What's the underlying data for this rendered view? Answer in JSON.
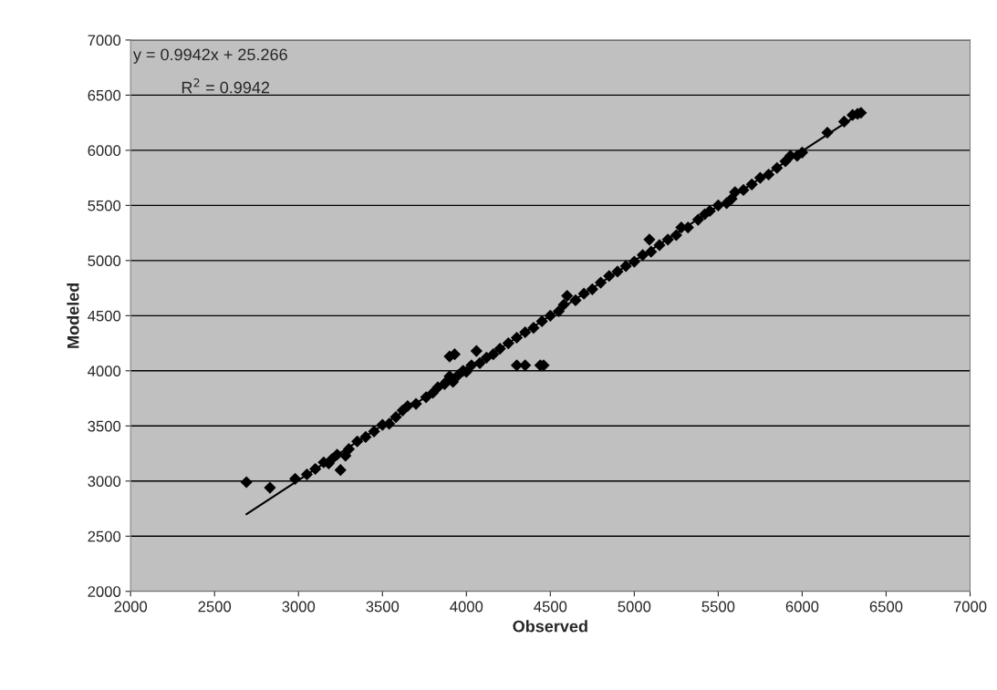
{
  "chart_data": {
    "type": "scatter",
    "xlabel": "Observed",
    "ylabel": "Modeled",
    "xlim": [
      2000,
      7000
    ],
    "ylim": [
      2000,
      7000
    ],
    "xticks": [
      2000,
      2500,
      3000,
      3500,
      4000,
      4500,
      5000,
      5500,
      6000,
      6500,
      7000
    ],
    "yticks": [
      2000,
      2500,
      3000,
      3500,
      4000,
      4500,
      5000,
      5500,
      6000,
      6500,
      7000
    ],
    "grid": "y",
    "legend": false,
    "annotations": [
      "y = 0.9942x + 25.266",
      "R$^{2}$ = 0.9942"
    ],
    "series": [
      {
        "marker": "diamond",
        "color": "#000000",
        "x": [
          2690,
          2830,
          2980,
          3050,
          3100,
          3150,
          3180,
          3200,
          3230,
          3250,
          3280,
          3300,
          3350,
          3400,
          3450,
          3500,
          3540,
          3580,
          3620,
          3650,
          3700,
          3760,
          3800,
          3830,
          3870,
          3880,
          3900,
          3900,
          3920,
          3930,
          3950,
          3980,
          4000,
          4030,
          4060,
          4080,
          4120,
          4160,
          4200,
          4250,
          4300,
          4300,
          4350,
          4350,
          4400,
          4440,
          4450,
          4460,
          4500,
          4550,
          4580,
          4600,
          4650,
          4700,
          4750,
          4800,
          4850,
          4900,
          4950,
          5000,
          5050,
          5090,
          5100,
          5150,
          5200,
          5250,
          5280,
          5320,
          5380,
          5420,
          5450,
          5500,
          5550,
          5580,
          5600,
          5650,
          5700,
          5750,
          5800,
          5850,
          5900,
          5930,
          5970,
          6000,
          6150,
          6250,
          6300,
          6330,
          6350
        ],
        "values": [
          2990,
          2940,
          3020,
          3060,
          3110,
          3170,
          3160,
          3200,
          3240,
          3100,
          3230,
          3290,
          3360,
          3400,
          3450,
          3510,
          3520,
          3580,
          3640,
          3680,
          3700,
          3760,
          3800,
          3850,
          3880,
          3900,
          3950,
          4130,
          3900,
          4150,
          3960,
          4000,
          3990,
          4050,
          4180,
          4070,
          4120,
          4150,
          4200,
          4250,
          4300,
          4050,
          4350,
          4050,
          4390,
          4050,
          4450,
          4050,
          4500,
          4540,
          4600,
          4680,
          4640,
          4700,
          4740,
          4800,
          4860,
          4900,
          4950,
          4990,
          5050,
          5190,
          5080,
          5140,
          5190,
          5230,
          5300,
          5300,
          5370,
          5420,
          5450,
          5500,
          5520,
          5560,
          5620,
          5640,
          5690,
          5750,
          5780,
          5840,
          5900,
          5950,
          5950,
          5980,
          6160,
          6260,
          6320,
          6330,
          6340
        ]
      },
      {
        "type": "line",
        "marker": "none",
        "color": "#000000",
        "x": [
          2690,
          6350
        ],
        "values": [
          2700,
          6340
        ]
      }
    ]
  }
}
